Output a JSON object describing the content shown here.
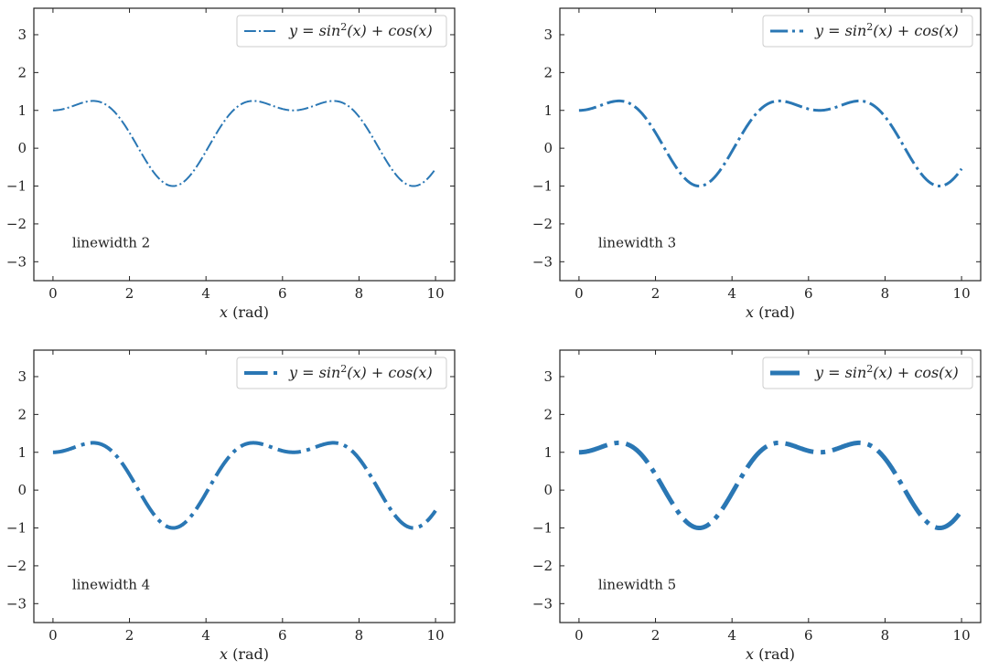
{
  "chart_data": [
    {
      "type": "line",
      "function": "sin^2(x) + cos(x)",
      "x_range": [
        0,
        10
      ],
      "xlabel_var": "x",
      "xlabel_unit": " (rad)",
      "xlim": [
        -0.5,
        10.5
      ],
      "ylim": [
        -3.5,
        3.7
      ],
      "xticks": [
        0,
        2,
        4,
        6,
        8,
        10
      ],
      "yticks": [
        -3,
        -2,
        -1,
        0,
        1,
        2,
        3
      ],
      "series": [
        {
          "name": "y = sin2(x) + cos(x)",
          "color": "#2a77b4",
          "linewidth": 2,
          "linestyle": "dashdot"
        }
      ],
      "legend": {
        "y": "y",
        "eq": " = ",
        "sin": "sin",
        "exp": "2",
        "x1": "(x)",
        "plus": " + ",
        "cos": "cos",
        "x2": "(x)"
      },
      "legend_position": "top-right",
      "annotation": "linewidth 2"
    },
    {
      "type": "line",
      "function": "sin^2(x) + cos(x)",
      "x_range": [
        0,
        10
      ],
      "xlabel_var": "x",
      "xlabel_unit": " (rad)",
      "xlim": [
        -0.5,
        10.5
      ],
      "ylim": [
        -3.5,
        3.7
      ],
      "xticks": [
        0,
        2,
        4,
        6,
        8,
        10
      ],
      "yticks": [
        -3,
        -2,
        -1,
        0,
        1,
        2,
        3
      ],
      "series": [
        {
          "name": "y = sin2(x) + cos(x)",
          "color": "#2a77b4",
          "linewidth": 3,
          "linestyle": "dashdot"
        }
      ],
      "legend": {
        "y": "y",
        "eq": " = ",
        "sin": "sin",
        "exp": "2",
        "x1": "(x)",
        "plus": " + ",
        "cos": "cos",
        "x2": "(x)"
      },
      "legend_position": "top-right",
      "annotation": "linewidth 3"
    },
    {
      "type": "line",
      "function": "sin^2(x) + cos(x)",
      "x_range": [
        0,
        10
      ],
      "xlabel_var": "x",
      "xlabel_unit": " (rad)",
      "xlim": [
        -0.5,
        10.5
      ],
      "ylim": [
        -3.5,
        3.7
      ],
      "xticks": [
        0,
        2,
        4,
        6,
        8,
        10
      ],
      "yticks": [
        -3,
        -2,
        -1,
        0,
        1,
        2,
        3
      ],
      "series": [
        {
          "name": "y = sin2(x) + cos(x)",
          "color": "#2a77b4",
          "linewidth": 4,
          "linestyle": "dashdot"
        }
      ],
      "legend": {
        "y": "y",
        "eq": " = ",
        "sin": "sin",
        "exp": "2",
        "x1": "(x)",
        "plus": " + ",
        "cos": "cos",
        "x2": "(x)"
      },
      "legend_position": "top-right",
      "annotation": "linewidth 4"
    },
    {
      "type": "line",
      "function": "sin^2(x) + cos(x)",
      "x_range": [
        0,
        10
      ],
      "xlabel_var": "x",
      "xlabel_unit": " (rad)",
      "xlim": [
        -0.5,
        10.5
      ],
      "ylim": [
        -3.5,
        3.7
      ],
      "xticks": [
        0,
        2,
        4,
        6,
        8,
        10
      ],
      "yticks": [
        -3,
        -2,
        -1,
        0,
        1,
        2,
        3
      ],
      "series": [
        {
          "name": "y = sin2(x) + cos(x)",
          "color": "#2a77b4",
          "linewidth": 5,
          "linestyle": "dashdot"
        }
      ],
      "legend": {
        "y": "y",
        "eq": " = ",
        "sin": "sin",
        "exp": "2",
        "x1": "(x)",
        "plus": " + ",
        "cos": "cos",
        "x2": "(x)"
      },
      "legend_position": "top-right",
      "annotation": "linewidth 5"
    }
  ]
}
